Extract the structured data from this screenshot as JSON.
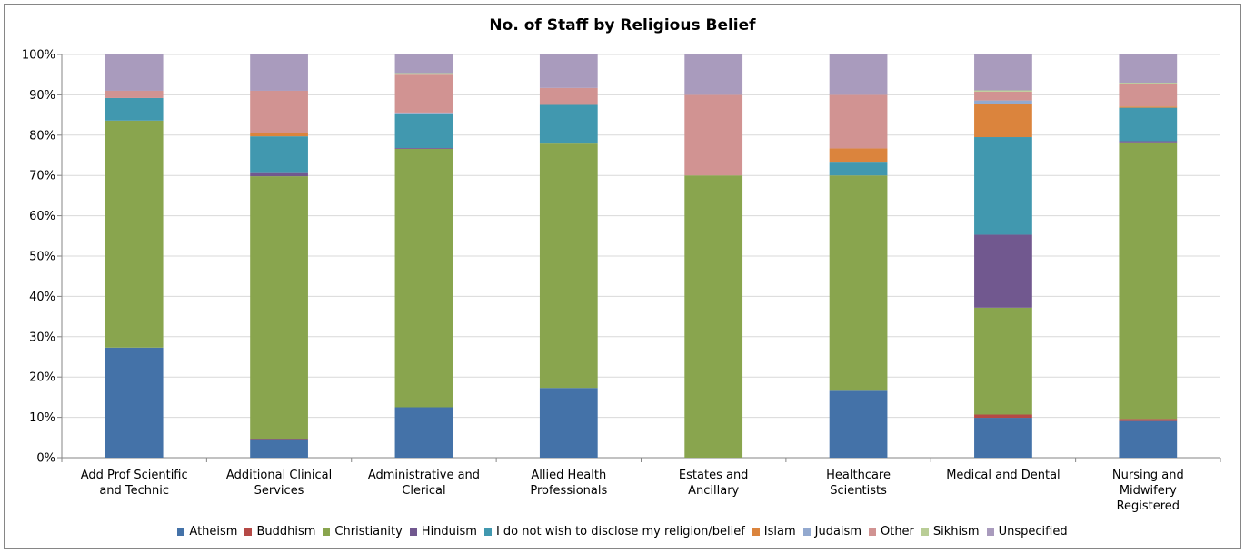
{
  "chart_data": {
    "type": "bar",
    "stacked": "percent",
    "title": "No. of Staff by Religious Belief",
    "xlabel": "",
    "ylabel": "",
    "ylim": [
      0,
      100
    ],
    "y_ticks": [
      "0%",
      "10%",
      "20%",
      "30%",
      "40%",
      "50%",
      "60%",
      "70%",
      "80%",
      "90%",
      "100%"
    ],
    "grid": true,
    "legend_position": "bottom",
    "categories": [
      [
        "Add Prof Scientific",
        "and Technic"
      ],
      [
        "Additional Clinical",
        "Services"
      ],
      [
        "Administrative and",
        "Clerical"
      ],
      [
        "Allied Health",
        "Professionals"
      ],
      [
        "Estates and",
        "Ancillary"
      ],
      [
        "Healthcare",
        "Scientists"
      ],
      [
        "Medical and Dental"
      ],
      [
        "Nursing and",
        "Midwifery",
        "Registered"
      ]
    ],
    "series": [
      {
        "name": "Atheism",
        "color": "#4472A8",
        "values": [
          27.3,
          4.4,
          12.5,
          17.3,
          0,
          16.6,
          9.9,
          9.1
        ]
      },
      {
        "name": "Buddhism",
        "color": "#B54946",
        "values": [
          0,
          0.3,
          0,
          0,
          0,
          0,
          0.8,
          0.5
        ]
      },
      {
        "name": "Christianity",
        "color": "#89A54E",
        "values": [
          56.3,
          65.1,
          64.1,
          60.6,
          70,
          53.4,
          26.5,
          68.6
        ]
      },
      {
        "name": "Hinduism",
        "color": "#71588F",
        "values": [
          0,
          1,
          0.2,
          0,
          0,
          0,
          18.1,
          0.3
        ]
      },
      {
        "name": "I do not wish to disclose my religion/belief",
        "color": "#4198AF",
        "values": [
          5.6,
          8.9,
          8.4,
          9.6,
          0,
          3.4,
          24.2,
          8.3
        ]
      },
      {
        "name": "Islam",
        "color": "#DB843D",
        "values": [
          0,
          0.9,
          0.2,
          0,
          0,
          3.3,
          8.3,
          0.3
        ]
      },
      {
        "name": "Judaism",
        "color": "#93A9CF",
        "values": [
          0,
          0,
          0.2,
          0,
          0,
          0,
          0.8,
          0
        ]
      },
      {
        "name": "Other",
        "color": "#D19392",
        "values": [
          1.8,
          10.4,
          9.4,
          4.2,
          20,
          13.3,
          2.2,
          5.6
        ]
      },
      {
        "name": "Sikhism",
        "color": "#B9CD96",
        "values": [
          0,
          0,
          0.4,
          0,
          0,
          0,
          0.3,
          0.3
        ]
      },
      {
        "name": "Unspecified",
        "color": "#A99BBD",
        "values": [
          9,
          9,
          4.6,
          8.3,
          10,
          10,
          8.9,
          7
        ]
      }
    ]
  }
}
